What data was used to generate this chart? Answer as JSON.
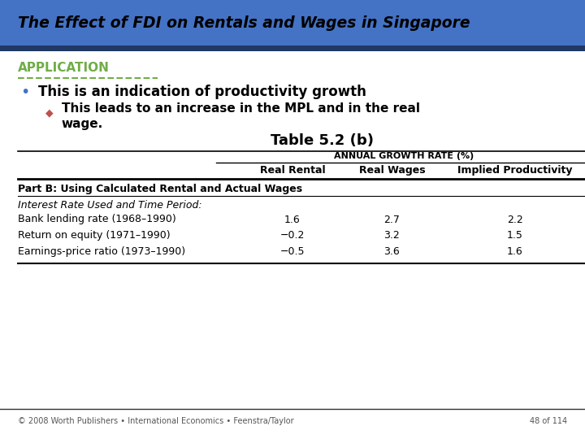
{
  "title": "The Effect of FDI on Rentals and Wages in Singapore",
  "title_bg_color": "#4472C4",
  "title_text_color": "#000000",
  "app_label": "APPLICATION",
  "app_label_color": "#70AD47",
  "dashed_line_color": "#70AD47",
  "bullet1": "This is an indication of productivity growth",
  "bullet1_color": "#4472C4",
  "bullet2_color": "#C0504D",
  "table_title": "Table 5.2 (b)",
  "col_header_group": "ANNUAL GROWTH RATE (%)",
  "col_headers": [
    "Real Rental",
    "Real Wages",
    "Implied Productivity"
  ],
  "part_b_label": "Part B: Using Calculated Rental and Actual Wages",
  "interest_label": "Interest Rate Used and Time Period:",
  "rows": [
    {
      "label": "Bank lending rate (1968–1990)",
      "real_rental": "1.6",
      "real_wages": "2.7",
      "implied_prod": "2.2"
    },
    {
      "label": "Return on equity (1971–1990)",
      "real_rental": "−0.2",
      "real_wages": "3.2",
      "implied_prod": "1.5"
    },
    {
      "label": "Earnings-price ratio (1973–1990)",
      "real_rental": "−0.5",
      "real_wages": "3.6",
      "implied_prod": "1.6"
    }
  ],
  "footer_left": "© 2008 Worth Publishers • International Economics • Feenstra/Taylor",
  "footer_right": "48 of 114",
  "bg_color": "#FFFFFF",
  "dark_bar_color": "#1F3864"
}
